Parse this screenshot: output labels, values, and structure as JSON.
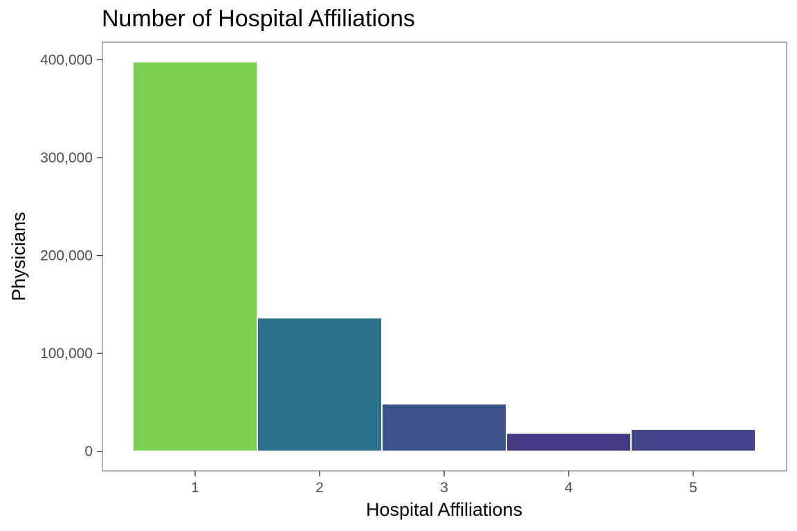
{
  "chart_data": {
    "type": "bar",
    "title": "Number of Hospital Affiliations",
    "xlabel": "Hospital Affiliations",
    "ylabel": "Physicians",
    "categories": [
      "1",
      "2",
      "3",
      "4",
      "5"
    ],
    "values": [
      398000,
      136500,
      48500,
      18500,
      22500
    ],
    "bar_colors": [
      "#7AD151",
      "#2C728E",
      "#3B528B",
      "#443A83",
      "#414487"
    ],
    "bar_outline_color": "#ffffff",
    "ylim": [
      -20000,
      418000
    ],
    "yticks": [
      0,
      100000,
      200000,
      300000,
      400000
    ],
    "ytick_labels": [
      "0",
      "100,000",
      "200,000",
      "300,000",
      "400,000"
    ],
    "grid": false,
    "legend": "none",
    "panel_border_color": "#888888"
  }
}
